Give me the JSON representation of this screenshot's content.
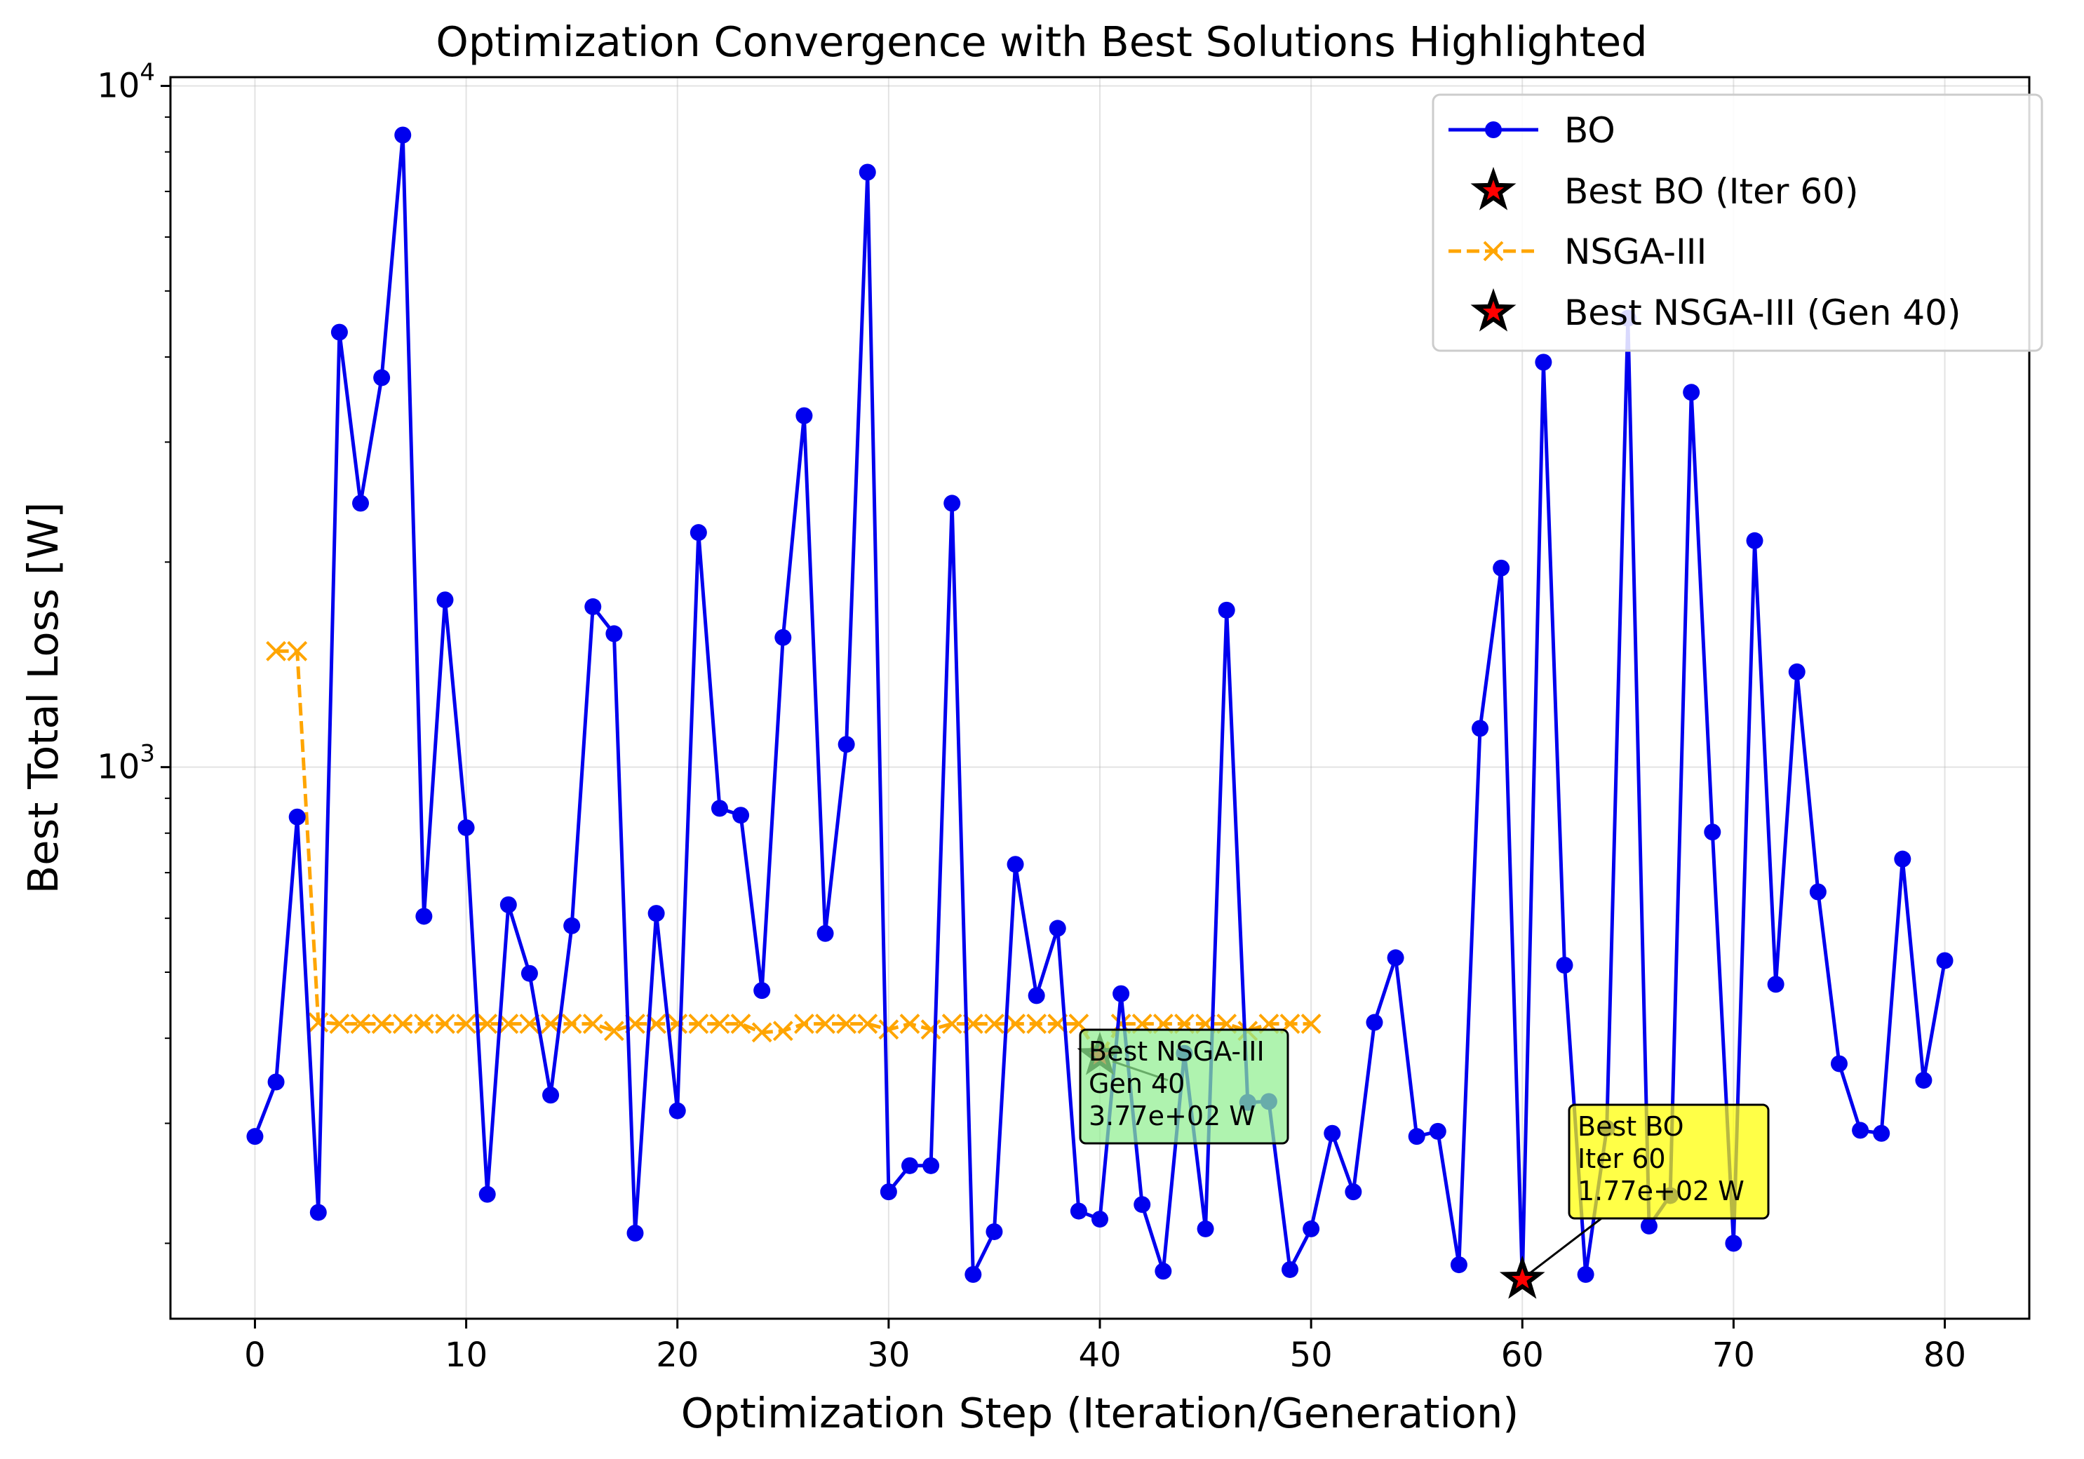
{
  "chart_data": {
    "type": "line",
    "title": "Optimization Convergence with Best Solutions Highlighted",
    "xlabel": "Optimization Step (Iteration/Generation)",
    "ylabel": "Best Total Loss [W]",
    "yscale": "log",
    "xlim": [
      -4,
      84
    ],
    "ylim": [
      155,
      10300
    ],
    "grid": true,
    "legend_position": "top-right",
    "x_ticks": [
      0,
      10,
      20,
      30,
      40,
      50,
      60,
      70,
      80
    ],
    "x_tick_labels": [
      "0",
      "10",
      "20",
      "30",
      "40",
      "50",
      "60",
      "70",
      "80"
    ],
    "y_ticks": [
      1000,
      10000
    ],
    "y_tick_labels": [
      {
        "base": "10",
        "exp": "3"
      },
      {
        "base": "10",
        "exp": "4"
      }
    ],
    "series": [
      {
        "name": "BO",
        "color": "#0000ee",
        "marker": "circle",
        "linestyle": "solid",
        "x": [
          0,
          1,
          2,
          3,
          4,
          5,
          6,
          7,
          8,
          9,
          10,
          11,
          12,
          13,
          14,
          15,
          16,
          17,
          18,
          19,
          20,
          21,
          22,
          23,
          24,
          25,
          26,
          27,
          28,
          29,
          30,
          31,
          32,
          33,
          34,
          35,
          36,
          37,
          38,
          39,
          40,
          41,
          42,
          43,
          44,
          45,
          46,
          47,
          48,
          49,
          50,
          51,
          52,
          53,
          54,
          55,
          56,
          57,
          58,
          59,
          60,
          61,
          62,
          63,
          64,
          65,
          66,
          67,
          68,
          69,
          70,
          71,
          72,
          73,
          74,
          75,
          76,
          77,
          78,
          79,
          80
        ],
        "y": [
          287,
          345,
          845,
          222,
          4350,
          2440,
          3730,
          8470,
          604,
          1760,
          815,
          236,
          628,
          498,
          330,
          585,
          1720,
          1570,
          207,
          610,
          313,
          2210,
          870,
          850,
          470,
          1550,
          3280,
          570,
          1080,
          7470,
          238,
          260,
          260,
          2440,
          180,
          208,
          720,
          462,
          580,
          223,
          217,
          465,
          228,
          182,
          380,
          210,
          1700,
          322,
          323,
          183,
          210,
          290,
          238,
          422,
          525,
          287,
          292,
          186,
          1140,
          1960,
          177,
          3930,
          512,
          180,
          295,
          4560,
          212,
          235,
          3550,
          803,
          200,
          2150,
          480,
          1380,
          656,
          367,
          293,
          290,
          733,
          347,
          520
        ]
      },
      {
        "name": "Best BO (Iter 60)",
        "color": "#ff0000",
        "marker": "star",
        "x": [
          60
        ],
        "y": [
          177
        ]
      },
      {
        "name": "NSGA-III",
        "color": "#ffa500",
        "marker": "x",
        "linestyle": "dashed",
        "x": [
          1,
          2,
          3,
          4,
          5,
          6,
          7,
          8,
          9,
          10,
          11,
          12,
          13,
          14,
          15,
          16,
          17,
          18,
          19,
          20,
          21,
          22,
          23,
          24,
          25,
          26,
          27,
          28,
          29,
          30,
          31,
          32,
          33,
          34,
          35,
          36,
          37,
          38,
          39,
          40,
          41,
          42,
          43,
          44,
          45,
          46,
          47,
          48,
          49,
          50
        ],
        "y": [
          1480,
          1480,
          422,
          420,
          420,
          420,
          420,
          420,
          420,
          420,
          420,
          420,
          420,
          420,
          420,
          420,
          410,
          420,
          420,
          420,
          420,
          420,
          420,
          408,
          410,
          420,
          420,
          420,
          420,
          412,
          420,
          412,
          420,
          420,
          420,
          420,
          420,
          420,
          420,
          377,
          420,
          420,
          420,
          420,
          420,
          420,
          410,
          420,
          420,
          420
        ]
      },
      {
        "name": "Best NSGA-III (Gen 40)",
        "color": "#ff0000",
        "marker": "star",
        "x": [
          40
        ],
        "y": [
          377
        ]
      }
    ],
    "annotations": [
      {
        "lines": [
          "Best NSGA-III",
          "Gen 40",
          "3.77e+02 W"
        ],
        "point": [
          40,
          377
        ],
        "box_color": "#90ee90"
      },
      {
        "lines": [
          "Best BO",
          "Iter 60",
          "1.77e+02 W"
        ],
        "point": [
          60,
          177
        ],
        "box_color": "#ffff00"
      }
    ]
  }
}
